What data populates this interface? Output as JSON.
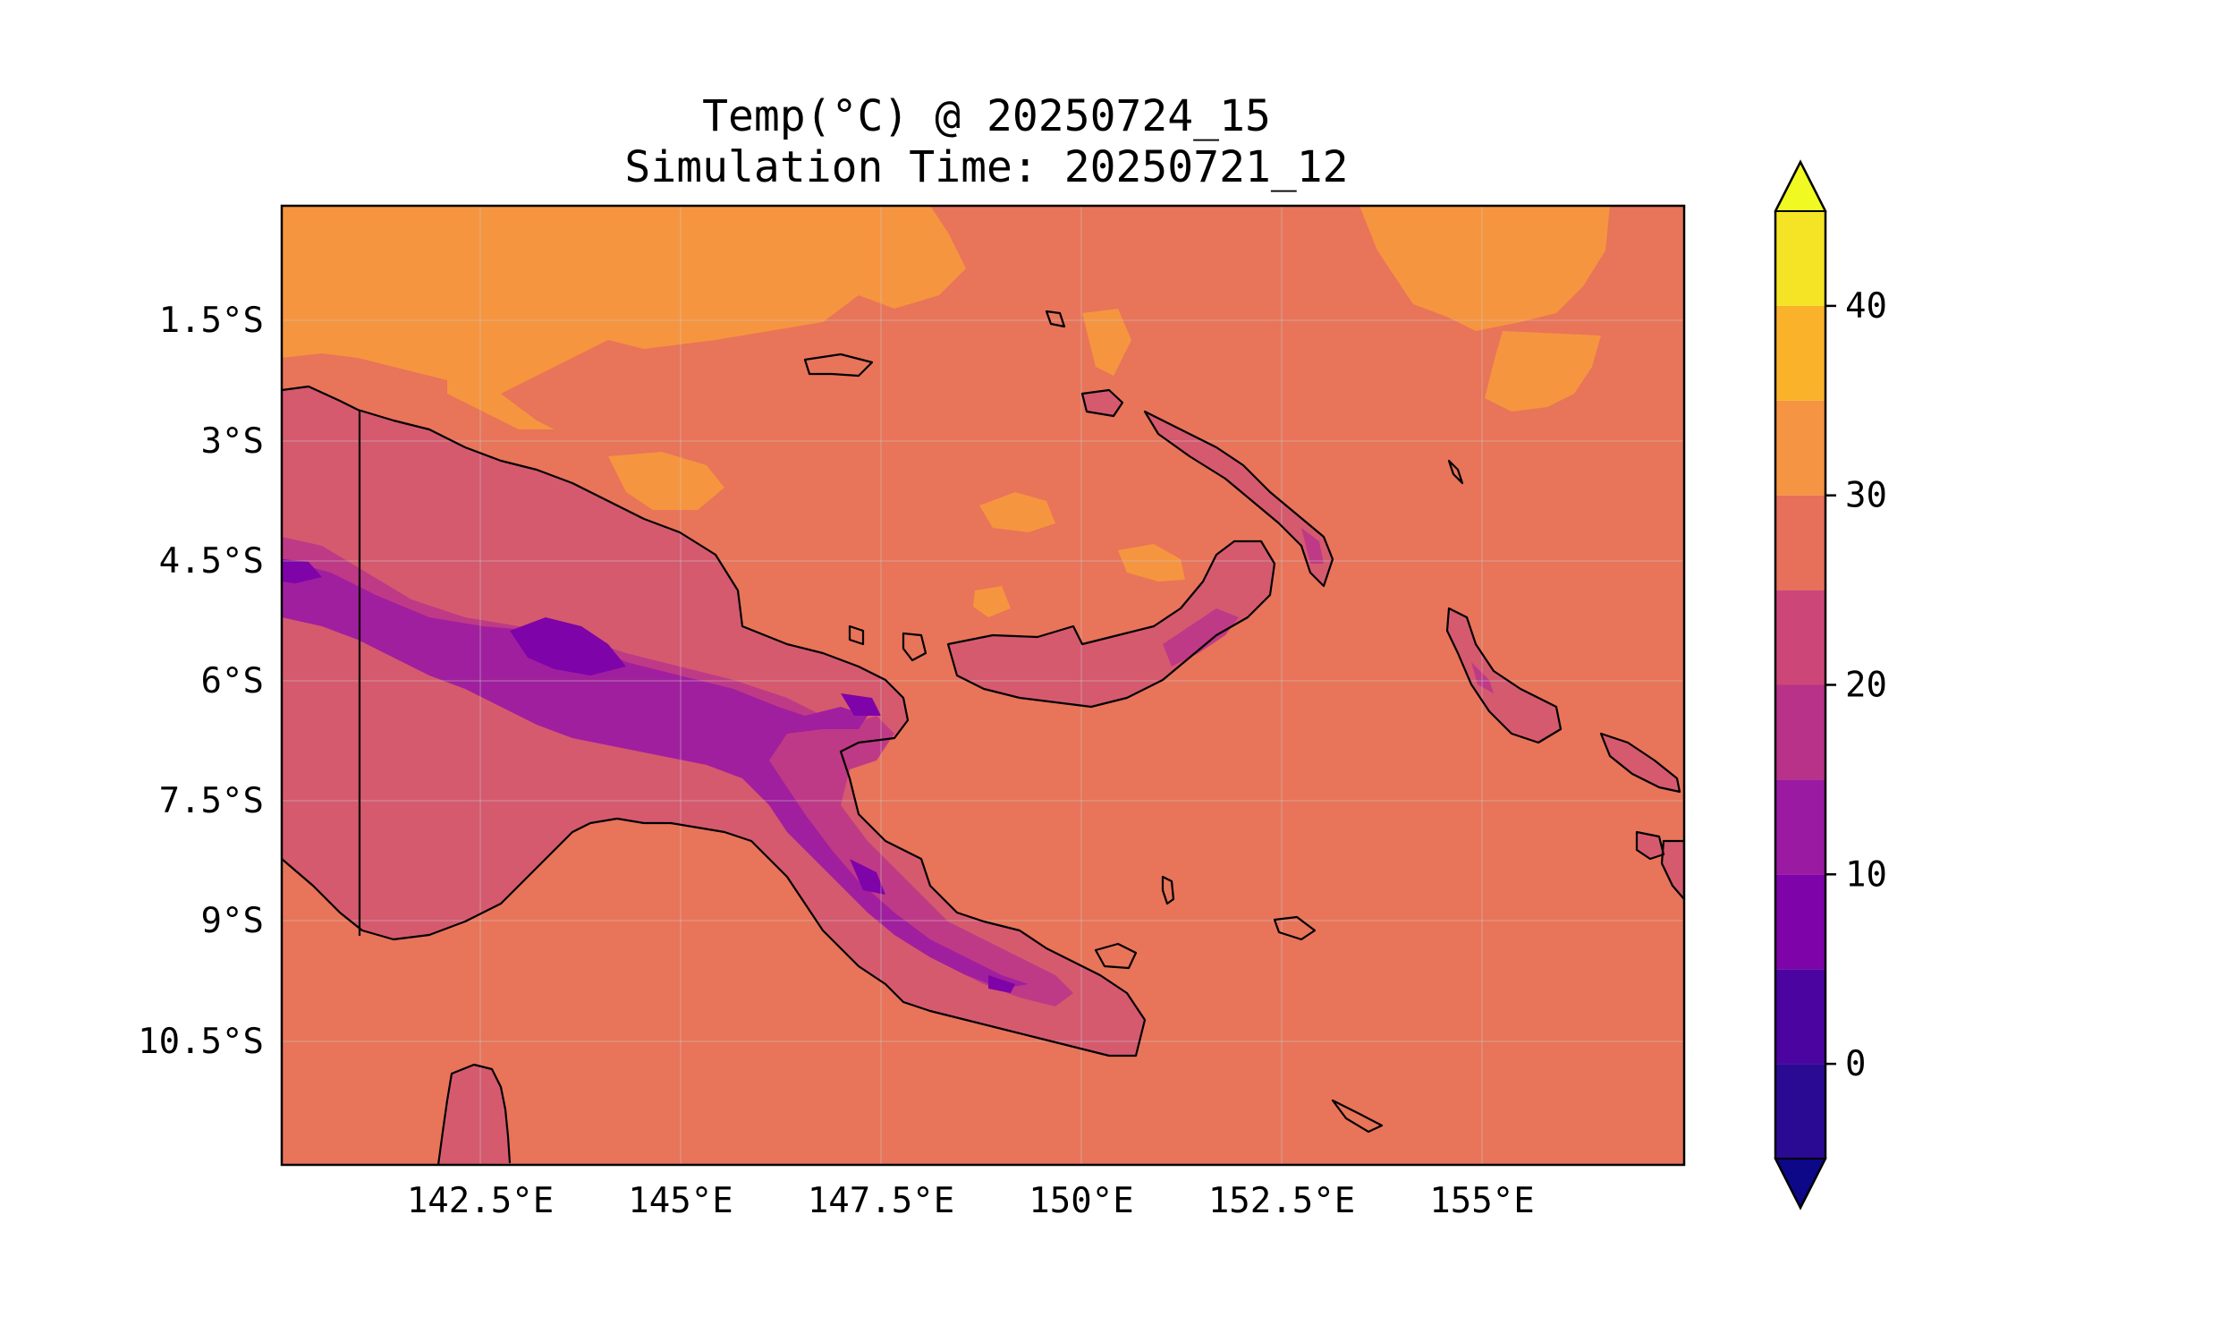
{
  "figure": {
    "title": "Temp(°C) @ 20250724_15",
    "subtitle": "Simulation Time: 20250721_12"
  },
  "map": {
    "type": "filled-contour",
    "variable": "Temp(°C)",
    "region": "Papua New Guinea",
    "lon_range": [
      140.0,
      157.5
    ],
    "lat_range": [
      -12.0,
      0.0
    ],
    "lon_ticks": [
      "142.5°E",
      "145°E",
      "147.5°E",
      "150°E",
      "152.5°E",
      "155°E"
    ],
    "lat_ticks": [
      "1.5°S",
      "3°S",
      "4.5°S",
      "6°S",
      "7.5°S",
      "9°S",
      "10.5°S"
    ],
    "lon_tick_values": [
      142.5,
      145.0,
      147.5,
      150.0,
      152.5,
      155.0
    ],
    "lat_tick_values": [
      -1.5,
      -3.0,
      -4.5,
      -6.0,
      -7.5,
      -9.0,
      -10.5
    ],
    "gridlines": true
  },
  "colorbar": {
    "colormap": "plasma",
    "range": [
      -5,
      45
    ],
    "levels": [
      -5,
      0,
      5,
      10,
      15,
      20,
      25,
      30,
      35,
      40,
      45
    ],
    "colors": [
      "#2a0a92",
      "#4b04a0",
      "#7e03a8",
      "#9a1aa2",
      "#b83289",
      "#cc4778",
      "#e6705a",
      "#f59442",
      "#fbb22b",
      "#f4e425"
    ],
    "under_color": "#0d0887",
    "over_color": "#f0f921",
    "tick_labels": [
      "0",
      "10",
      "20",
      "30",
      "40"
    ],
    "tick_values": [
      0,
      10,
      20,
      30,
      40
    ],
    "extend": "both"
  },
  "colors": {
    "ocean": "#e8745a",
    "warm": "#f6953f",
    "land_lowland": "#d55a6e",
    "highland_1": "#bf3a86",
    "highland_2": "#a01f9e",
    "highland_3": "#7e03a8",
    "coastline": "#000000"
  }
}
